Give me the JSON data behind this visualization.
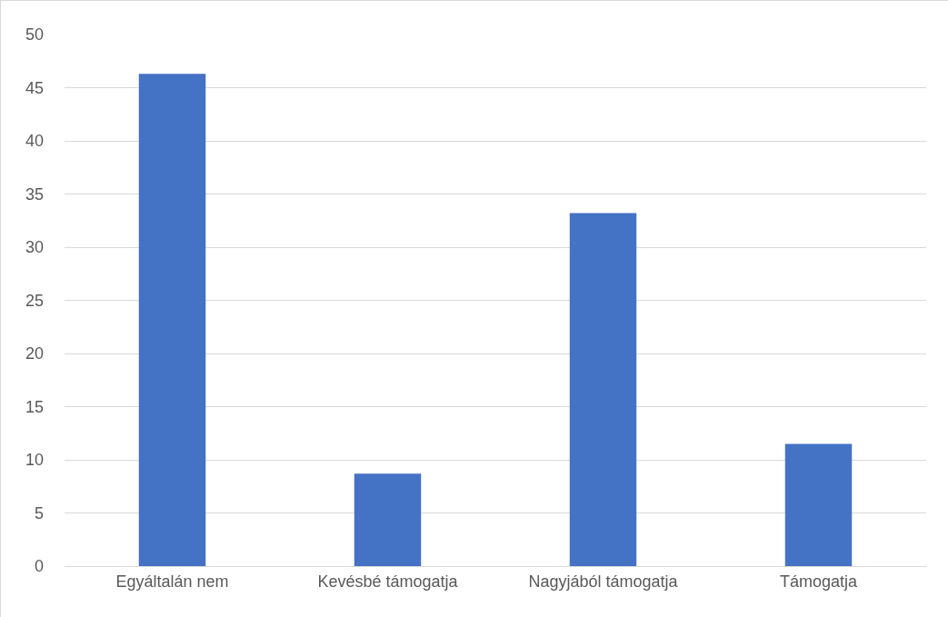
{
  "chart_data": {
    "type": "bar",
    "categories": [
      "Egyáltalán nem",
      "Kevésbé támogatja",
      "Nagyjából támogatja",
      "Támogatja"
    ],
    "values": [
      46.3,
      8.7,
      33.2,
      11.5
    ],
    "color": "#4472c4",
    "ylim": [
      0,
      50
    ],
    "yticks": [
      0,
      5,
      10,
      15,
      20,
      25,
      30,
      35,
      40,
      45,
      50
    ],
    "grid": "y"
  }
}
